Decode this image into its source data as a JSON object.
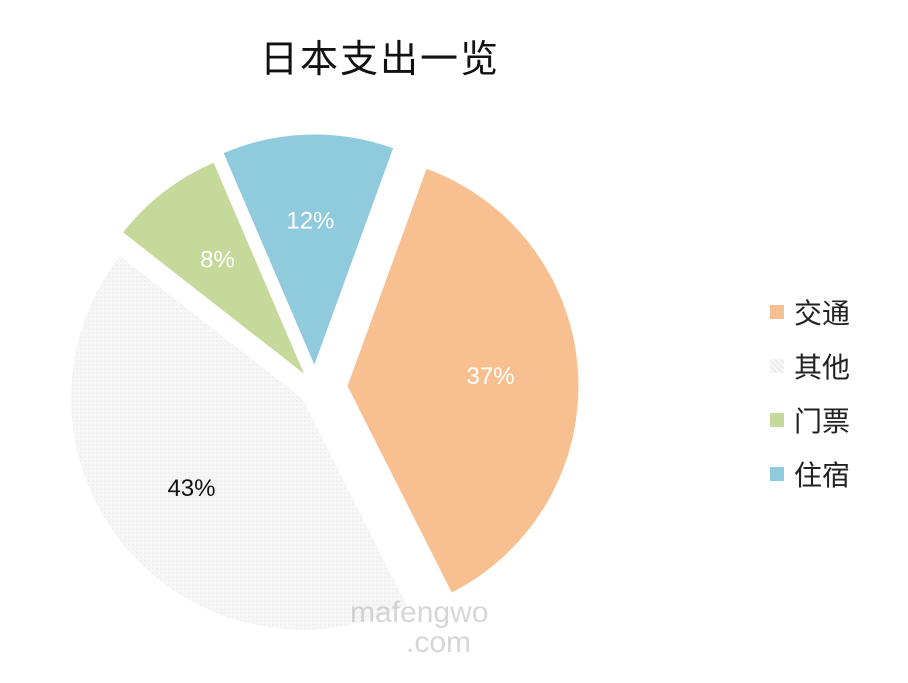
{
  "chart_data": {
    "type": "pie",
    "title": "日本支出一览",
    "slices": [
      {
        "name": "交通",
        "value": 37,
        "label": "37%",
        "color": "#F8C090",
        "label_color": "#ffffff"
      },
      {
        "name": "其他",
        "value": 43,
        "label": "43%",
        "color": "#F4F4F4",
        "label_color": "#111111"
      },
      {
        "name": "门票",
        "value": 8,
        "label": "8%",
        "color": "#C5D99A",
        "label_color": "#ffffff"
      },
      {
        "name": "住宿",
        "value": 12,
        "label": "12%",
        "color": "#8FCBDC",
        "label_color": "#ffffff"
      }
    ],
    "legend": {
      "position": "right"
    }
  },
  "watermark": {
    "line1": "mafengwo",
    "line2": ".com"
  }
}
